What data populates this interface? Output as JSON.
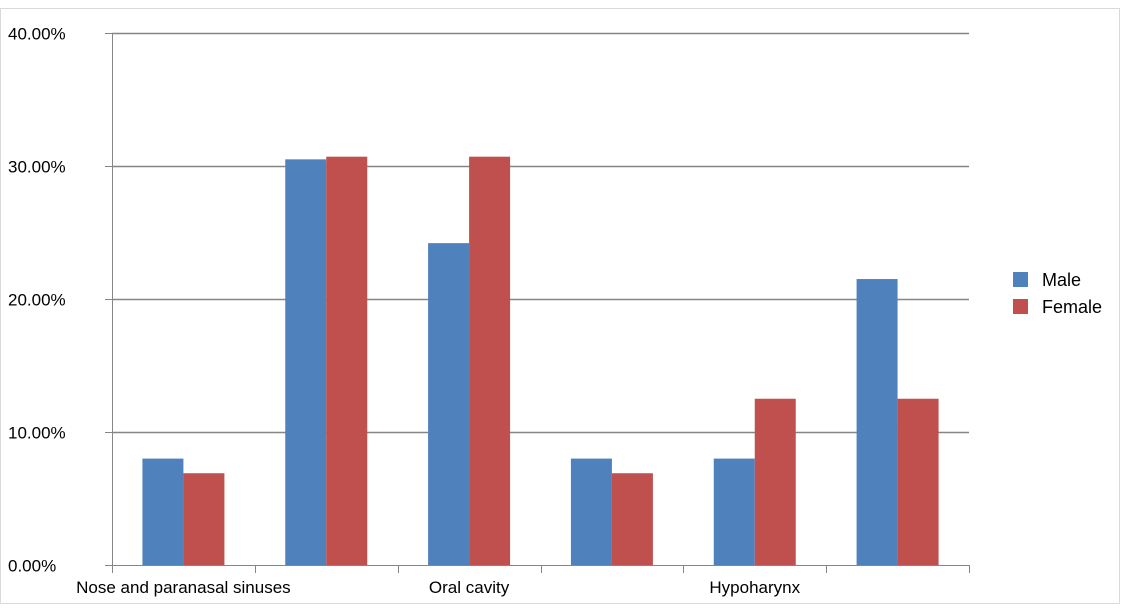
{
  "chart_data": {
    "type": "bar",
    "categories": [
      "Nose and paranasal sinuses",
      "",
      "Oral cavity",
      "",
      "Hypoharynx",
      ""
    ],
    "series": [
      {
        "name": "Male",
        "color": "#4f81bd",
        "values": [
          0.08,
          0.305,
          0.242,
          0.08,
          0.08,
          0.215
        ]
      },
      {
        "name": "Female",
        "color": "#c0504d",
        "values": [
          0.069,
          0.307,
          0.307,
          0.069,
          0.125,
          0.125
        ]
      }
    ],
    "ylim": [
      0,
      0.4
    ],
    "yticks": [
      0,
      0.1,
      0.2,
      0.3,
      0.4
    ],
    "ytick_labels": [
      "0.00%",
      "10.00%",
      "20.00%",
      "30.00%",
      "40.00%"
    ],
    "title": "",
    "xlabel": "",
    "ylabel": "",
    "grid": true,
    "legend": "right"
  }
}
